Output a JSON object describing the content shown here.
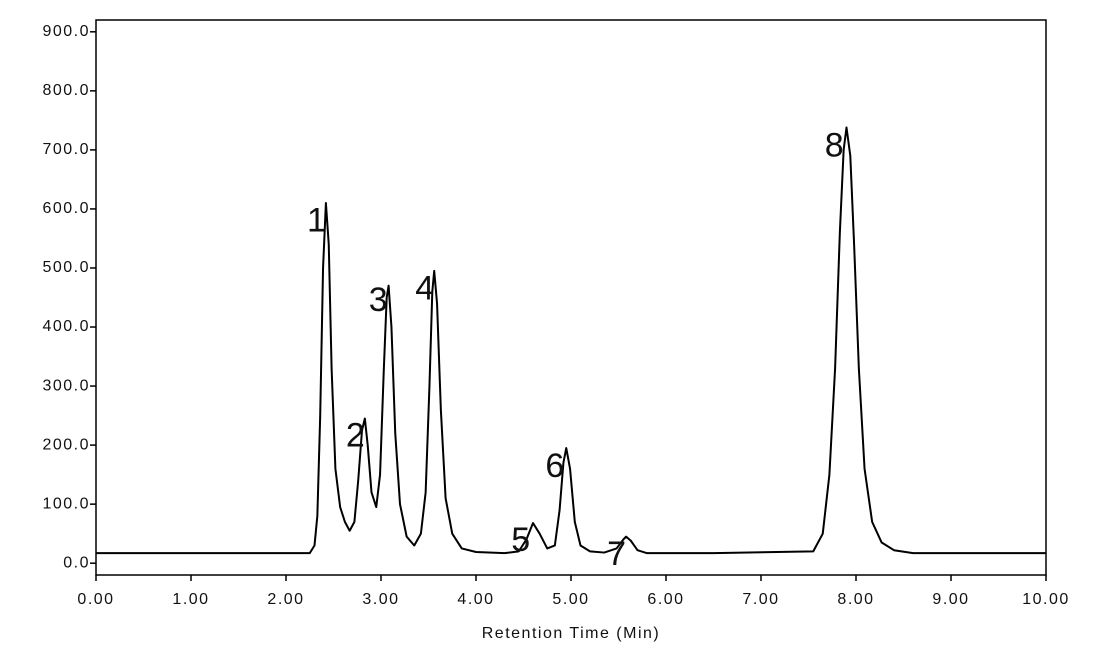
{
  "chart_data": {
    "type": "line",
    "x_label": "Retention Time (Min)",
    "color": "#000000",
    "xlim": [
      0,
      10
    ],
    "ylim": [
      -20,
      920
    ],
    "xticks": [
      {
        "value": 0,
        "label": "0.00"
      },
      {
        "value": 1,
        "label": "1.00"
      },
      {
        "value": 2,
        "label": "2.00"
      },
      {
        "value": 3,
        "label": "3.00"
      },
      {
        "value": 4,
        "label": "4.00"
      },
      {
        "value": 5,
        "label": "5.00"
      },
      {
        "value": 6,
        "label": "6.00"
      },
      {
        "value": 7,
        "label": "7.00"
      },
      {
        "value": 8,
        "label": "8.00"
      },
      {
        "value": 9,
        "label": "9.00"
      },
      {
        "value": 10,
        "label": "10.00"
      }
    ],
    "yticks": [
      {
        "value": 0,
        "label": "0.0"
      },
      {
        "value": 100,
        "label": "100.0"
      },
      {
        "value": 200,
        "label": "200.0"
      },
      {
        "value": 300,
        "label": "300.0"
      },
      {
        "value": 400,
        "label": "400.0"
      },
      {
        "value": 500,
        "label": "500.0"
      },
      {
        "value": 600,
        "label": "600.0"
      },
      {
        "value": 700,
        "label": "700.0"
      },
      {
        "value": 800,
        "label": "800.0"
      },
      {
        "value": 900,
        "label": "900.0"
      }
    ],
    "x": [
      0,
      2.25,
      2.3,
      2.33,
      2.36,
      2.39,
      2.42,
      2.45,
      2.48,
      2.52,
      2.57,
      2.62,
      2.67,
      2.72,
      2.76,
      2.8,
      2.83,
      2.86,
      2.9,
      2.95,
      2.99,
      3.03,
      3.06,
      3.08,
      3.11,
      3.15,
      3.2,
      3.27,
      3.35,
      3.42,
      3.47,
      3.51,
      3.54,
      3.56,
      3.59,
      3.63,
      3.68,
      3.75,
      3.85,
      4.0,
      4.3,
      4.45,
      4.53,
      4.6,
      4.67,
      4.75,
      4.83,
      4.88,
      4.92,
      4.95,
      4.99,
      5.04,
      5.1,
      5.2,
      5.35,
      5.48,
      5.55,
      5.58,
      5.63,
      5.7,
      5.8,
      6.5,
      7.55,
      7.65,
      7.72,
      7.78,
      7.83,
      7.87,
      7.9,
      7.94,
      7.98,
      8.03,
      8.09,
      8.17,
      8.27,
      8.4,
      8.6,
      10
    ],
    "values": [
      17,
      17,
      30,
      80,
      250,
      500,
      610,
      540,
      330,
      160,
      95,
      70,
      55,
      70,
      140,
      225,
      245,
      200,
      120,
      95,
      150,
      330,
      450,
      470,
      400,
      220,
      100,
      45,
      30,
      50,
      120,
      300,
      460,
      495,
      440,
      260,
      110,
      50,
      25,
      19,
      17,
      20,
      40,
      68,
      50,
      25,
      30,
      90,
      170,
      195,
      160,
      70,
      30,
      20,
      18,
      25,
      40,
      45,
      38,
      22,
      17,
      17,
      20,
      50,
      150,
      330,
      560,
      700,
      738,
      690,
      540,
      330,
      160,
      70,
      35,
      22,
      17,
      17
    ],
    "annotations": [
      {
        "text": "1",
        "x": 2.32,
        "y": 577
      },
      {
        "text": "2",
        "x": 2.73,
        "y": 213
      },
      {
        "text": "3",
        "x": 2.97,
        "y": 442
      },
      {
        "text": "4",
        "x": 3.46,
        "y": 462
      },
      {
        "text": "5",
        "x": 4.47,
        "y": 36
      },
      {
        "text": "6",
        "x": 4.83,
        "y": 161
      },
      {
        "text": "7",
        "x": 5.48,
        "y": 12
      },
      {
        "text": "8",
        "x": 7.77,
        "y": 704
      }
    ]
  }
}
